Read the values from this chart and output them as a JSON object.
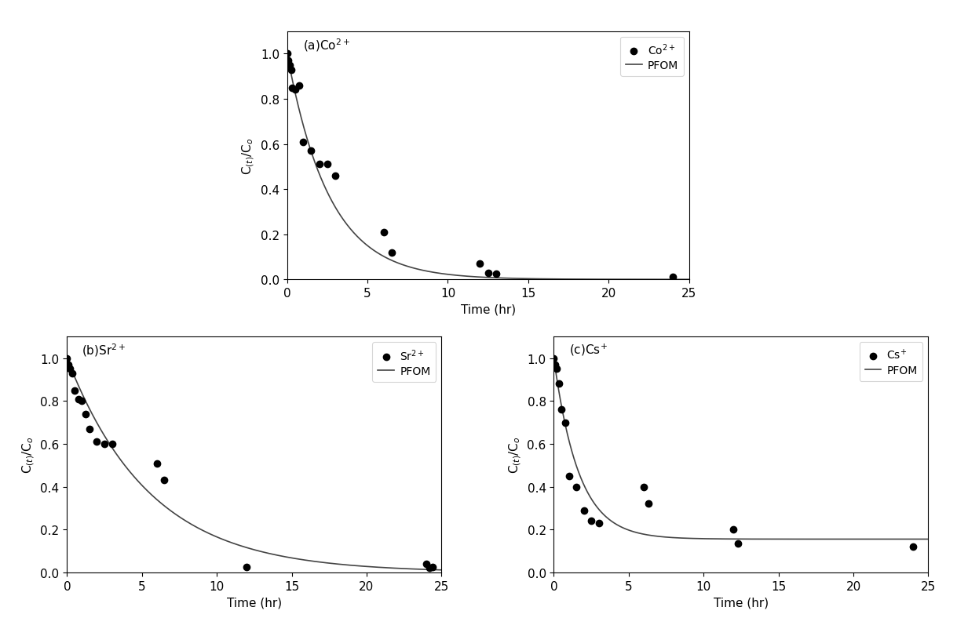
{
  "co_scatter_x": [
    0.0,
    0.08,
    0.17,
    0.25,
    0.33,
    0.5,
    0.75,
    1.0,
    1.5,
    2.0,
    2.5,
    3.0,
    6.0,
    6.5,
    12.0,
    12.5,
    13.0,
    24.0
  ],
  "co_scatter_y": [
    1.0,
    0.97,
    0.95,
    0.93,
    0.85,
    0.84,
    0.86,
    0.61,
    0.57,
    0.51,
    0.51,
    0.46,
    0.21,
    0.12,
    0.07,
    0.03,
    0.025,
    0.01
  ],
  "co_pfom_k": 0.38,
  "co_pfom_ceq": 0.0,
  "sr_scatter_x": [
    0.0,
    0.08,
    0.17,
    0.33,
    0.5,
    0.75,
    1.0,
    1.25,
    1.5,
    2.0,
    2.5,
    3.0,
    6.0,
    6.5,
    12.0,
    24.0,
    24.2,
    24.4
  ],
  "sr_scatter_y": [
    1.0,
    0.97,
    0.95,
    0.93,
    0.85,
    0.81,
    0.8,
    0.74,
    0.67,
    0.61,
    0.6,
    0.6,
    0.51,
    0.43,
    0.025,
    0.04,
    0.02,
    0.025
  ],
  "sr_pfom_k": 0.18,
  "sr_pfom_ceq": 0.0,
  "cs_scatter_x": [
    0.0,
    0.08,
    0.17,
    0.33,
    0.5,
    0.75,
    1.0,
    1.5,
    2.0,
    2.5,
    3.0,
    6.0,
    6.3,
    12.0,
    12.3,
    24.0
  ],
  "cs_scatter_y": [
    1.0,
    0.97,
    0.95,
    0.88,
    0.76,
    0.7,
    0.45,
    0.4,
    0.29,
    0.24,
    0.23,
    0.4,
    0.32,
    0.2,
    0.135,
    0.12
  ],
  "cs_pfom_k": 0.6,
  "cs_pfom_ceq": 0.155,
  "xlabel": "Time (hr)",
  "ylabel_co": "C$_{(t)}$/C$_o$",
  "ylabel_sr": "C$_{(t)}$/C$_o$",
  "ylabel_cs": "C$_{(t)}$/C$_o$",
  "xlim": [
    0,
    25
  ],
  "ylim": [
    0.0,
    1.1
  ],
  "xticks": [
    0,
    5,
    10,
    15,
    20,
    25
  ],
  "yticks": [
    0.0,
    0.2,
    0.4,
    0.6,
    0.8,
    1.0
  ],
  "label_co": "Co$^{2+}$",
  "label_sr": "Sr$^{2+}$",
  "label_cs": "Cs$^{+}$",
  "label_pfom": "PFOM",
  "title_co": "(a)Co$^{2+}$",
  "title_sr": "(b)Sr$^{2+}$",
  "title_cs": "(c)Cs$^{+}$",
  "scatter_color": "black",
  "line_color": "#444444",
  "marker_size": 6,
  "fontsize_label": 11,
  "fontsize_title": 11,
  "fontsize_legend": 10,
  "linewidth": 1.2
}
